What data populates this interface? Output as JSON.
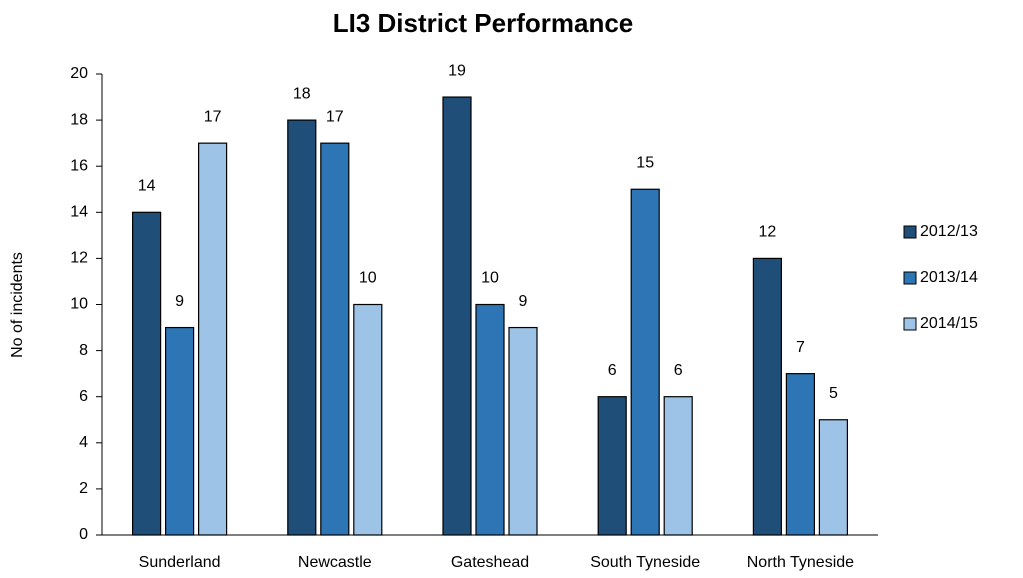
{
  "chart_data": {
    "type": "bar",
    "title": "LI3 District Performance",
    "ylabel": "No of incidents",
    "categories": [
      "Sunderland",
      "Newcastle",
      "Gateshead",
      "South Tyneside",
      "North Tyneside"
    ],
    "series": [
      {
        "name": "2012/13",
        "color": "#1f4e79",
        "values": [
          14,
          18,
          19,
          6,
          12
        ]
      },
      {
        "name": "2013/14",
        "color": "#2e75b6",
        "values": [
          9,
          17,
          10,
          15,
          7
        ]
      },
      {
        "name": "2014/15",
        "color": "#9dc3e6",
        "values": [
          17,
          10,
          9,
          6,
          5
        ]
      }
    ],
    "ylim": [
      0,
      20
    ],
    "yticks": [
      0,
      2,
      4,
      6,
      8,
      10,
      12,
      14,
      16,
      18,
      20
    ],
    "grid": false,
    "legend": "right"
  }
}
